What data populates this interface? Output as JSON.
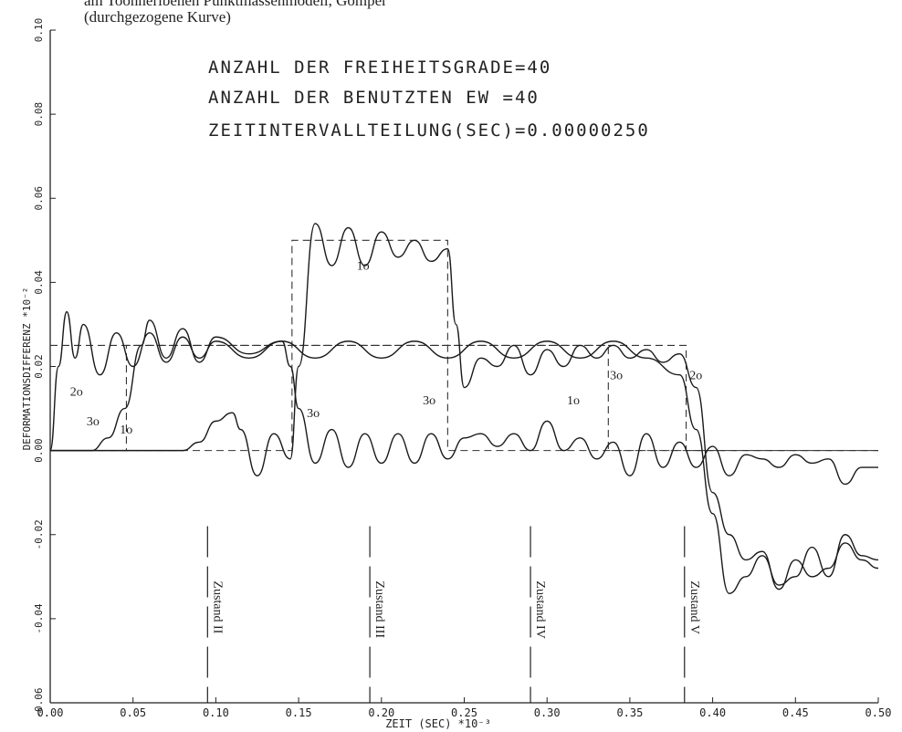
{
  "header": {
    "line1": "am Toonneribenen Punktmassenmodell, Gomper",
    "line2": "(durchgezogene Kurve)"
  },
  "info_lines": [
    "ANZAHL DER FREIHEITSGRADE=40",
    "ANZAHL DER BENUTZTEN EW  =40",
    "ZEITINTERVALLTEILUNG(SEC)=0.00000250"
  ],
  "chart_data": {
    "type": "line",
    "xlabel": "ZEIT  (SEC)   *10⁻³",
    "ylabel": "DEFORMATIONSDIFFERENZ  *10⁻²",
    "xlim": [
      0,
      0.5
    ],
    "ylim": [
      -0.06,
      0.1
    ],
    "x_ticks": [
      "0.00",
      "0.05",
      "0.10",
      "0.15",
      "0.20",
      "0.25",
      "0.30",
      "0.35",
      "0.40",
      "0.45",
      "0.50"
    ],
    "y_ticks": [
      "-0.06",
      "-0.04",
      "-0.02",
      "0.00",
      "0.02",
      "0.04",
      "0.06",
      "0.08",
      "0.10"
    ],
    "states": [
      {
        "label": "Zustand II",
        "x": 0.095
      },
      {
        "label": "Zustand III",
        "x": 0.193
      },
      {
        "label": "Zustand IV",
        "x": 0.29
      },
      {
        "label": "Zustand V",
        "x": 0.383
      }
    ],
    "reference_dashed": [
      {
        "x": [
          0,
          0.046,
          0.046,
          0.337,
          0.337,
          0.5
        ],
        "y": [
          0,
          0,
          0.025,
          0.025,
          0,
          0
        ]
      },
      {
        "x": [
          0,
          0.384,
          0.384,
          0.5
        ],
        "y": [
          0.025,
          0.025,
          0,
          0
        ]
      },
      {
        "x": [
          0,
          0.146,
          0.146,
          0.24,
          0.24,
          0.5
        ],
        "y": [
          0,
          0,
          0.05,
          0.05,
          0,
          0
        ]
      }
    ],
    "series": [
      {
        "name": "1o",
        "x": [
          0,
          0.06,
          0.08,
          0.09,
          0.1,
          0.11,
          0.115,
          0.125,
          0.135,
          0.145,
          0.15,
          0.16,
          0.17,
          0.18,
          0.19,
          0.2,
          0.21,
          0.22,
          0.23,
          0.24,
          0.245,
          0.25,
          0.26,
          0.27,
          0.28,
          0.29,
          0.3,
          0.31,
          0.32,
          0.33,
          0.34,
          0.35,
          0.36,
          0.37,
          0.38,
          0.39,
          0.4,
          0.41,
          0.42,
          0.43,
          0.44,
          0.45,
          0.46,
          0.47,
          0.48,
          0.49,
          0.5
        ],
        "y": [
          0,
          0,
          0,
          0.002,
          0.007,
          0.009,
          0.005,
          -0.006,
          0.004,
          -0.002,
          0.02,
          0.054,
          0.044,
          0.053,
          0.044,
          0.052,
          0.046,
          0.05,
          0.045,
          0.048,
          0.03,
          0.015,
          0.022,
          0.02,
          0.025,
          0.018,
          0.024,
          0.02,
          0.025,
          0.022,
          0.025,
          0.022,
          0.024,
          0.021,
          0.023,
          0.015,
          -0.01,
          -0.02,
          -0.026,
          -0.024,
          -0.033,
          -0.026,
          -0.03,
          -0.028,
          -0.022,
          -0.026,
          -0.028
        ]
      },
      {
        "name": "2o",
        "x": [
          0,
          0.005,
          0.01,
          0.015,
          0.02,
          0.03,
          0.04,
          0.05,
          0.06,
          0.07,
          0.08,
          0.09,
          0.1,
          0.12,
          0.14,
          0.16,
          0.18,
          0.2,
          0.22,
          0.24,
          0.26,
          0.28,
          0.3,
          0.32,
          0.34,
          0.36,
          0.38,
          0.39,
          0.4,
          0.41,
          0.42,
          0.43,
          0.44,
          0.45,
          0.46,
          0.47,
          0.48,
          0.49,
          0.5
        ],
        "y": [
          0,
          0.02,
          0.033,
          0.022,
          0.03,
          0.018,
          0.028,
          0.02,
          0.028,
          0.021,
          0.027,
          0.022,
          0.026,
          0.022,
          0.026,
          0.022,
          0.026,
          0.022,
          0.026,
          0.022,
          0.026,
          0.022,
          0.026,
          0.022,
          0.026,
          0.022,
          0.018,
          0.005,
          -0.015,
          -0.034,
          -0.03,
          -0.025,
          -0.032,
          -0.03,
          -0.023,
          -0.03,
          -0.02,
          -0.025,
          -0.026
        ]
      },
      {
        "name": "3o",
        "x": [
          0,
          0.025,
          0.035,
          0.045,
          0.055,
          0.06,
          0.07,
          0.08,
          0.09,
          0.1,
          0.12,
          0.14,
          0.145,
          0.15,
          0.16,
          0.17,
          0.18,
          0.19,
          0.2,
          0.21,
          0.22,
          0.23,
          0.24,
          0.25,
          0.26,
          0.27,
          0.28,
          0.29,
          0.3,
          0.31,
          0.32,
          0.33,
          0.34,
          0.35,
          0.36,
          0.37,
          0.38,
          0.39,
          0.4,
          0.41,
          0.42,
          0.43,
          0.44,
          0.45,
          0.46,
          0.47,
          0.48,
          0.49,
          0.5
        ],
        "y": [
          0,
          0,
          0.003,
          0.01,
          0.025,
          0.031,
          0.022,
          0.029,
          0.021,
          0.027,
          0.023,
          0.026,
          0.02,
          0.01,
          -0.003,
          0.005,
          -0.004,
          0.004,
          -0.003,
          0.004,
          -0.003,
          0.004,
          -0.002,
          0.003,
          0.004,
          0.001,
          0.004,
          0.0,
          0.007,
          0.0,
          0.003,
          -0.002,
          0.002,
          -0.006,
          0.004,
          -0.004,
          0.002,
          -0.004,
          0.001,
          -0.006,
          -0.001,
          -0.002,
          -0.004,
          -0.001,
          -0.003,
          -0.002,
          -0.008,
          -0.004,
          -0.004
        ]
      }
    ],
    "curve_labels": [
      {
        "text": "1o",
        "x": 0.185,
        "y": 0.043
      },
      {
        "text": "2o",
        "x": 0.012,
        "y": 0.013
      },
      {
        "text": "3o",
        "x": 0.022,
        "y": 0.006
      },
      {
        "text": "1o",
        "x": 0.042,
        "y": 0.004
      },
      {
        "text": "3o",
        "x": 0.155,
        "y": 0.008
      },
      {
        "text": "3o",
        "x": 0.225,
        "y": 0.011
      },
      {
        "text": "1o",
        "x": 0.312,
        "y": 0.011
      },
      {
        "text": "3o",
        "x": 0.338,
        "y": 0.017
      },
      {
        "text": "2o",
        "x": 0.386,
        "y": 0.017
      }
    ]
  }
}
